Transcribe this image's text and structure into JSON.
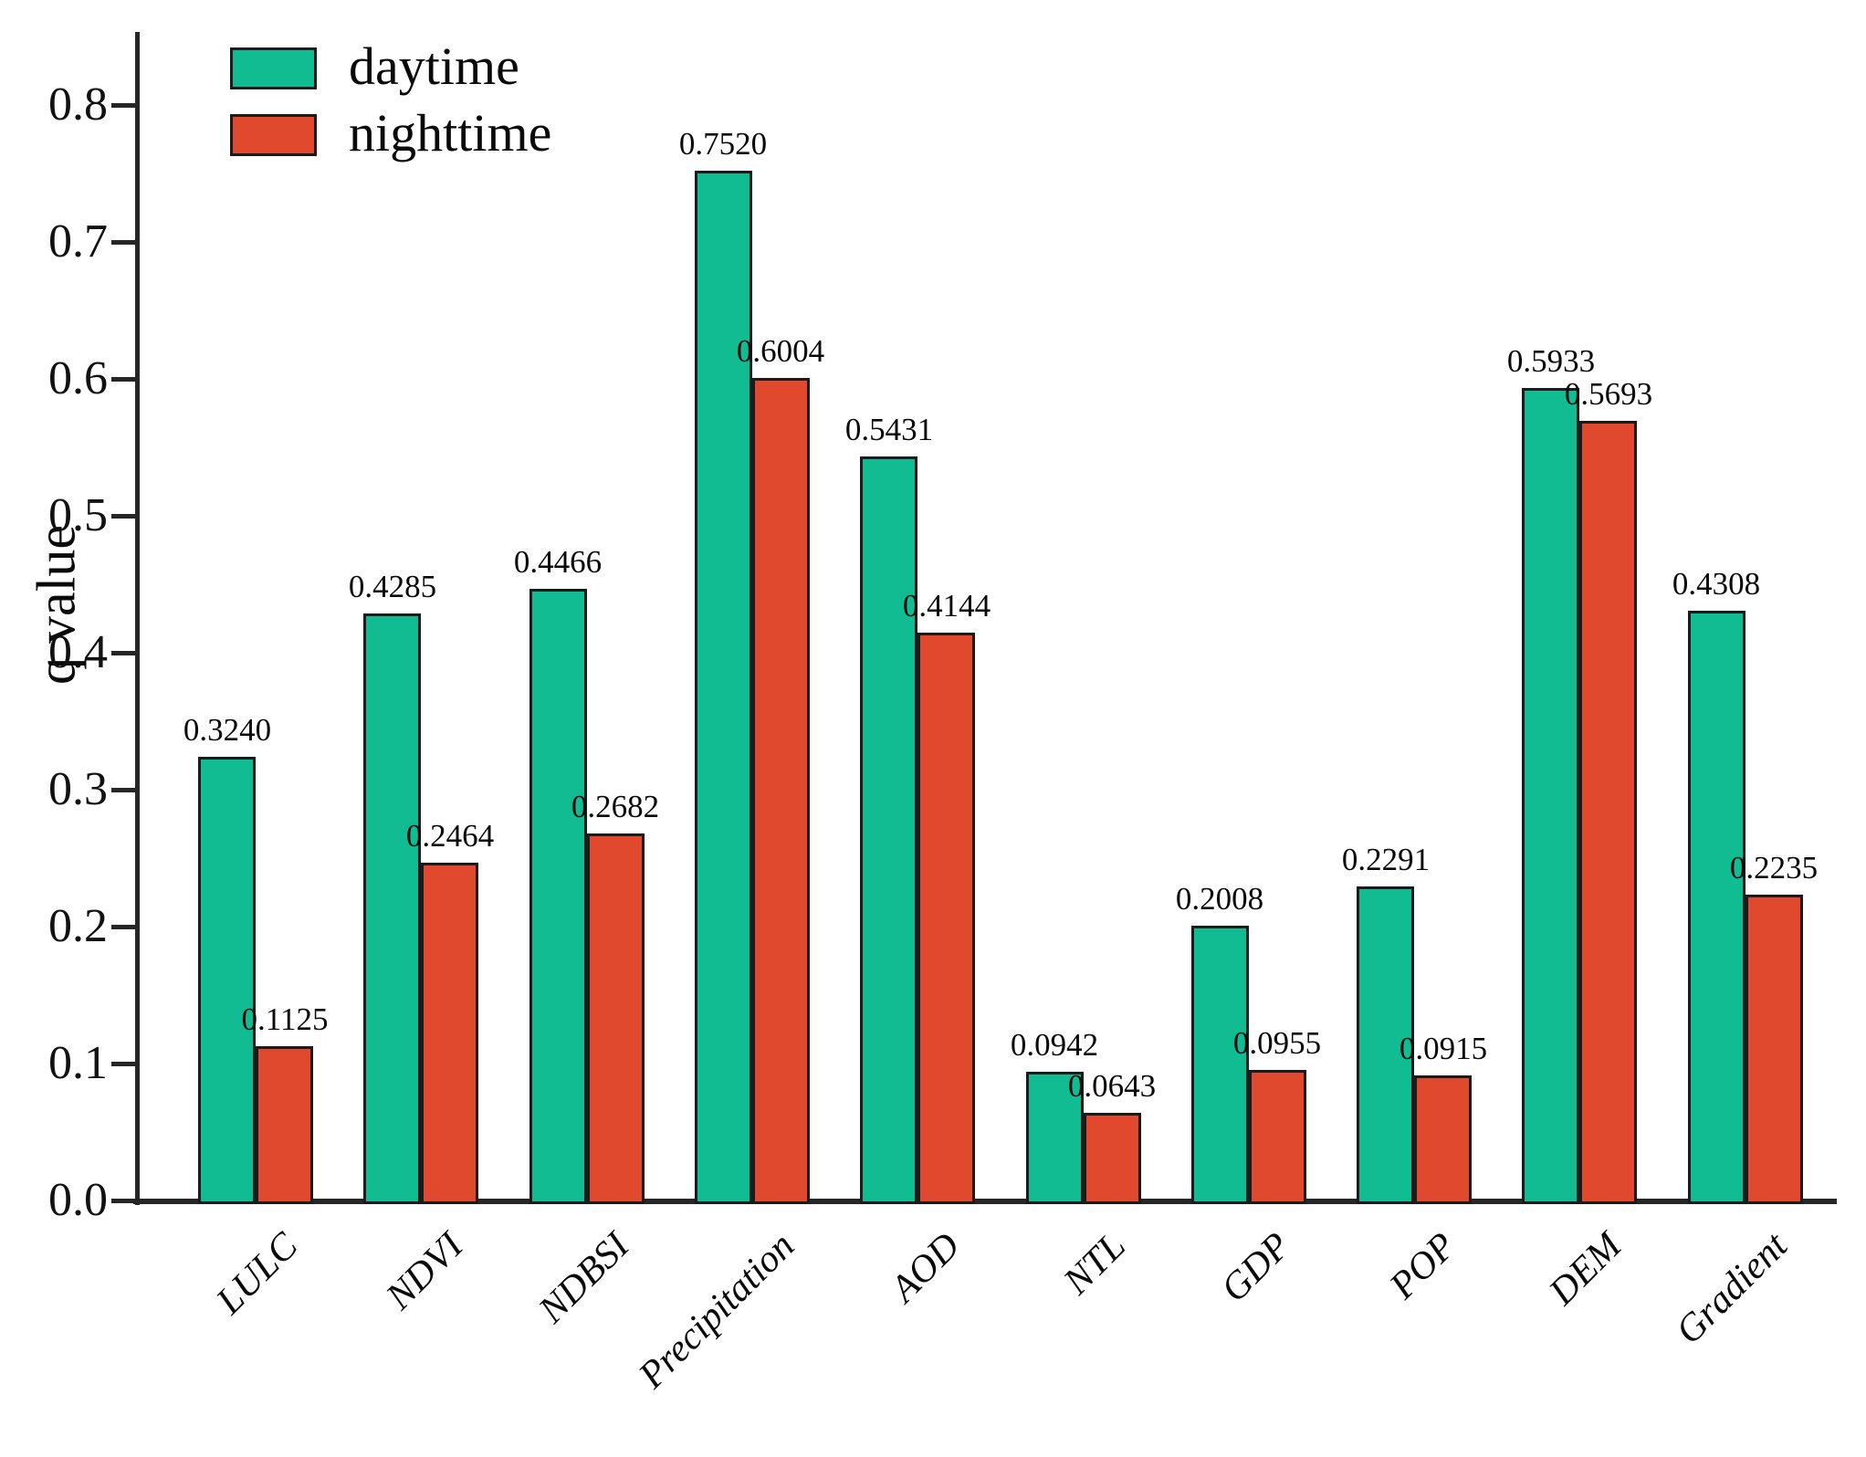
{
  "chart_data": {
    "type": "bar",
    "title": "",
    "xlabel": "",
    "ylabel": "q value",
    "categories": [
      "LULC",
      "NDVI",
      "NDBSI",
      "Precipitation",
      "AOD",
      "NTL",
      "GDP",
      "POP",
      "DEM",
      "Gradient"
    ],
    "series": [
      {
        "name": "daytime",
        "color": "#12BC92",
        "values": [
          0.324,
          0.4285,
          0.4466,
          0.752,
          0.5431,
          0.0942,
          0.2008,
          0.2291,
          0.5933,
          0.4308
        ],
        "labels": [
          "0.3240",
          "0.4285",
          "0.4466",
          "0.7520",
          "0.5431",
          "0.0942",
          "0.2008",
          "0.2291",
          "0.5933",
          "0.4308"
        ]
      },
      {
        "name": "nighttime",
        "color": "#E1492F",
        "values": [
          0.1125,
          0.2464,
          0.2682,
          0.6004,
          0.4144,
          0.0643,
          0.0955,
          0.0915,
          0.5693,
          0.2235
        ],
        "labels": [
          "0.1125",
          "0.2464",
          "0.2682",
          "0.6004",
          "0.4144",
          "0.0643",
          "0.0955",
          "0.0915",
          "0.5693",
          "0.2235"
        ]
      }
    ],
    "ylim": [
      0,
      0.85
    ],
    "ytick_interval": 0.1,
    "yticks": [
      "0.0",
      "0.1",
      "0.2",
      "0.3",
      "0.4",
      "0.5",
      "0.6",
      "0.7",
      "0.8"
    ],
    "grid": false,
    "legend_position": "upper-left",
    "bar_value_labels": true,
    "bar_edge_color": "#1b1b1b",
    "axis_color": "#262626",
    "text_color": "#0a0a0a"
  }
}
